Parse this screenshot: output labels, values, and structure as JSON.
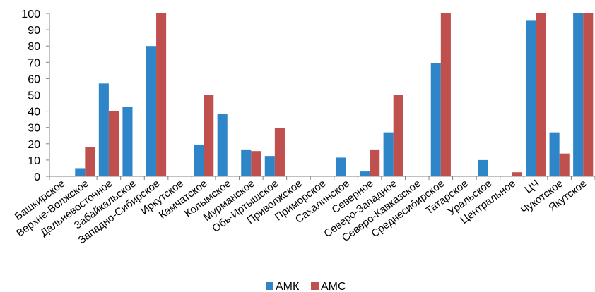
{
  "chart_data": {
    "type": "bar",
    "categories": [
      "Башкирское",
      "Верхне-Волжское",
      "Дальневосточное",
      "Забайкальское",
      "Западно-Сибирское",
      "Иркутское",
      "Камчатское",
      "Колымское",
      "Мурманское",
      "Обь-Иртышское",
      "Приволжское",
      "Приморское",
      "Сахалинское",
      "Северное",
      "Северо-Западное",
      "Северо-Кавказское",
      "Среднесибирское",
      "Татарское",
      "Уральское",
      "Центральное",
      "ЦЧ",
      "Чукотское",
      "Якутское"
    ],
    "series": [
      {
        "name": "АМК",
        "color": "#2E86C8",
        "values": [
          0,
          5,
          57,
          42.5,
          80,
          0,
          19.5,
          38.5,
          16.5,
          12.5,
          0,
          0,
          11.5,
          3,
          27,
          0,
          69.5,
          0,
          10,
          0,
          95.5,
          27,
          100
        ]
      },
      {
        "name": "АМС",
        "color": "#C0504D",
        "values": [
          0,
          18,
          40,
          0,
          100,
          0,
          50,
          0,
          15.5,
          29.5,
          0,
          0,
          0,
          16.5,
          50,
          0,
          100,
          0,
          0,
          2.5,
          100,
          14,
          100
        ]
      }
    ],
    "ylim": [
      0,
      100
    ],
    "yticks": [
      0,
      10,
      20,
      30,
      40,
      50,
      60,
      70,
      80,
      90,
      100
    ],
    "xlabel": "",
    "ylabel": "",
    "grid": false,
    "legend": "bottom"
  }
}
